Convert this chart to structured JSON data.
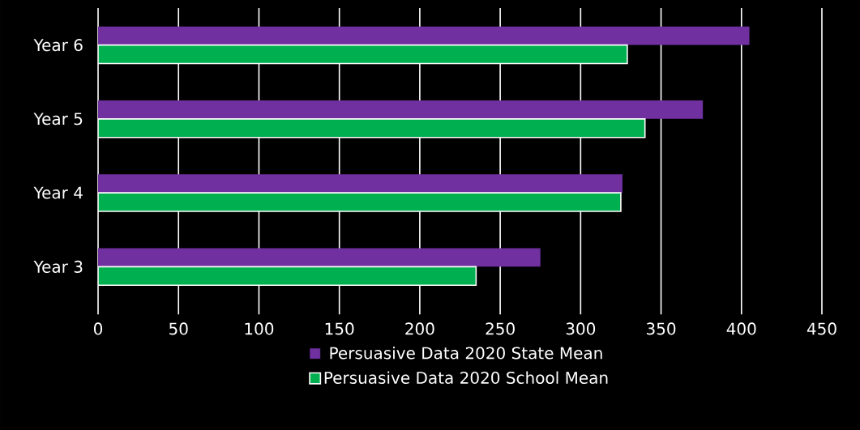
{
  "chart_data": {
    "type": "bar",
    "orientation": "horizontal",
    "categories": [
      "Year 6",
      "Year 5",
      "Year 4",
      "Year 3"
    ],
    "series": [
      {
        "name": "Persuasive Data 2020 State Mean",
        "color": "#7030a0",
        "values": [
          405,
          376,
          326,
          275
        ]
      },
      {
        "name": "Persuasive Data 2020 School Mean",
        "color": "#00b050",
        "values": [
          329,
          340,
          325,
          235
        ]
      }
    ],
    "xlim": [
      0,
      450
    ],
    "xticks": [
      0,
      50,
      100,
      150,
      200,
      250,
      300,
      350,
      400,
      450
    ],
    "grid": "x",
    "legend": "bottom"
  }
}
